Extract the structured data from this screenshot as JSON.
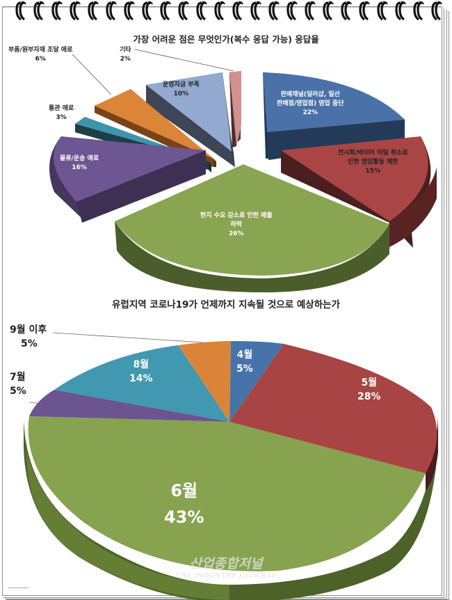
{
  "chart_data": [
    {
      "type": "pie",
      "style": "3d-exploded",
      "title": "가장 어려운 점은 무엇인가(복수 응답 가능) 응답율",
      "categories": [
        "판매채널(딜러샵, 일선 판매점/영업점) 영업 중단",
        "전시회/바이어 미팅 취소로 인한 영업활동 제한",
        "현지 수요 감소로 인한 매출 하락",
        "물류/운송 애로",
        "통관 애로",
        "부품/원부자재 조달 애로",
        "운영자금 부족",
        "기타"
      ],
      "values": [
        22,
        15,
        26,
        16,
        3,
        6,
        10,
        2
      ],
      "unit": "%",
      "colors": [
        "#4a72a8",
        "#a94544",
        "#8aa551",
        "#6d5691",
        "#3d95ab",
        "#db8538",
        "#93a9cf",
        "#d69090"
      ]
    },
    {
      "type": "pie",
      "style": "3d",
      "title": "유럽지역 코로나19가 언제까지 지속될 것으로 예상하는가",
      "categories": [
        "4월",
        "5월",
        "6월",
        "7월",
        "8월",
        "9월 이후"
      ],
      "values": [
        5,
        28,
        43,
        5,
        14,
        5
      ],
      "unit": "%",
      "colors": [
        "#4673aa",
        "#a84443",
        "#87a34f",
        "#6c5490",
        "#4198b0",
        "#da843a"
      ]
    }
  ],
  "chart1": {
    "title": "가장 어려운 점은 무엇인가(복수 응답 가능) 응답율",
    "labels": {
      "sales_channel": {
        "line1": "판매채널(딜러샵, 일선",
        "line2": "판매점/영업점) 영업 중단",
        "pct": "22%"
      },
      "exhibition": {
        "line1": "전시회/바이어 미팅 취소로",
        "line2": "인한 영업활동 제한",
        "pct": "15%"
      },
      "demand": {
        "line1": "현지 수요 감소로 인한 매출",
        "line2": "하락",
        "pct": "26%"
      },
      "logistics": {
        "line1": "물류/운송 애로",
        "pct": "16%"
      },
      "customs": {
        "line1": "통관 애로",
        "pct": "3%"
      },
      "parts": {
        "line1": "부품/원부자재 조달 애로",
        "pct": "6%"
      },
      "funds": {
        "line1": "운영자금 부족",
        "pct": "10%"
      },
      "other": {
        "line1": "기타",
        "pct": "2%"
      }
    }
  },
  "chart2": {
    "title": "유럽지역 코로나19가 언제까지 지속될 것으로 예상하는가",
    "labels": {
      "apr": {
        "name": "4월",
        "pct": "5%"
      },
      "may": {
        "name": "5월",
        "pct": "28%"
      },
      "jun": {
        "name": "6월",
        "pct": "43%"
      },
      "jul": {
        "name": "7월",
        "pct": "5%"
      },
      "aug": {
        "name": "8월",
        "pct": "14%"
      },
      "sep": {
        "name": "9월 이후",
        "pct": "5%"
      }
    }
  },
  "watermark": {
    "korean": "산업종합저널",
    "english": "THE INDUSTRY JOURNAL"
  }
}
